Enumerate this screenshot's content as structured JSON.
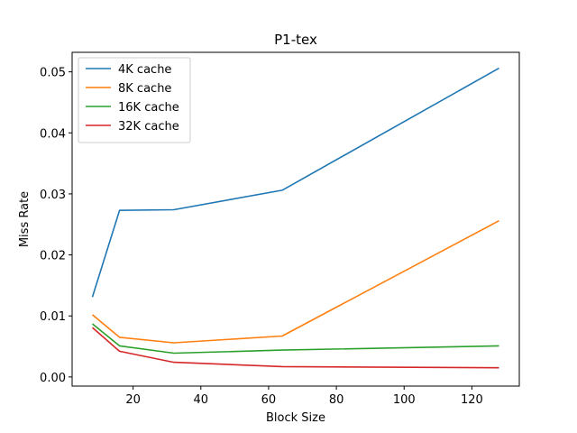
{
  "chart_data": {
    "type": "line",
    "title": "P1-tex",
    "xlabel": "Block Size",
    "ylabel": "Miss Rate",
    "xlim": [
      2,
      134
    ],
    "ylim": [
      -0.0015,
      0.0532
    ],
    "xticks": [
      20,
      40,
      60,
      80,
      100,
      120
    ],
    "yticks": [
      0.0,
      0.01,
      0.02,
      0.03,
      0.04,
      0.05
    ],
    "ytick_labels": [
      "0.00",
      "0.01",
      "0.02",
      "0.03",
      "0.04",
      "0.05"
    ],
    "legend_position": "top-left",
    "grid": false,
    "x": [
      8,
      16,
      32,
      64,
      128
    ],
    "series": [
      {
        "name": "4K cache",
        "color": "#1f77b4",
        "values": [
          0.0131,
          0.0273,
          0.0274,
          0.0306,
          0.0506
        ]
      },
      {
        "name": "8K cache",
        "color": "#ff7f0e",
        "values": [
          0.0102,
          0.0065,
          0.0056,
          0.0067,
          0.0256
        ]
      },
      {
        "name": "16K cache",
        "color": "#2ca02c",
        "values": [
          0.0087,
          0.0051,
          0.0039,
          0.0044,
          0.0051
        ]
      },
      {
        "name": "32K cache",
        "color": "#d62728",
        "values": [
          0.0081,
          0.0042,
          0.0024,
          0.0017,
          0.0015
        ]
      }
    ]
  }
}
